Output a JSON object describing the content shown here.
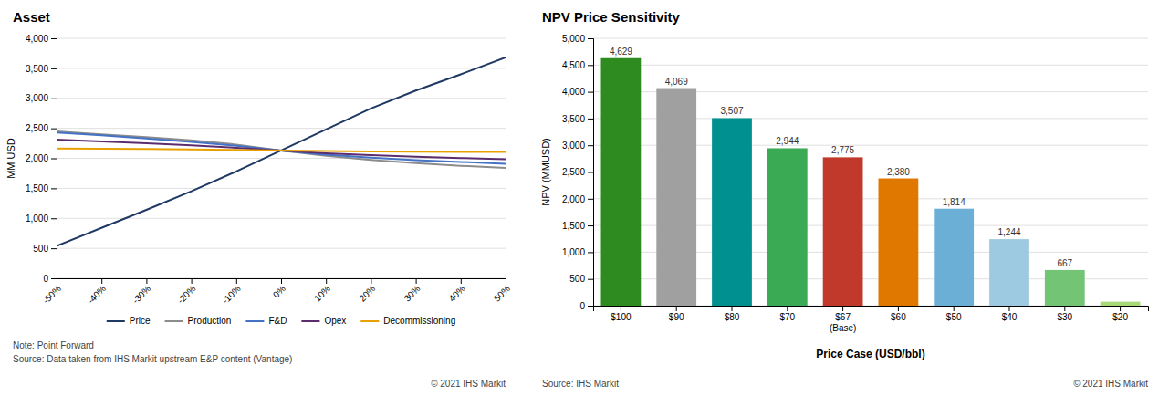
{
  "chart_data": [
    {
      "type": "line",
      "title": "Asset",
      "ylabel": "MM USD",
      "x": [
        -50,
        -40,
        -30,
        -20,
        -10,
        0,
        10,
        20,
        30,
        40,
        50
      ],
      "series": [
        {
          "name": "Price",
          "color": "#1f3864",
          "values": [
            540,
            840,
            1140,
            1450,
            1780,
            2130,
            2480,
            2830,
            3130,
            3400,
            3680
          ]
        },
        {
          "name": "Production",
          "color": "#8c8c8c",
          "values": [
            2450,
            2400,
            2355,
            2300,
            2230,
            2130,
            2040,
            1975,
            1920,
            1875,
            1840
          ]
        },
        {
          "name": "F&D",
          "color": "#4472c4",
          "values": [
            2430,
            2385,
            2330,
            2275,
            2210,
            2130,
            2060,
            2010,
            1970,
            1940,
            1910
          ]
        },
        {
          "name": "Opex",
          "color": "#5c2d6e",
          "values": [
            2310,
            2280,
            2250,
            2215,
            2175,
            2130,
            2085,
            2055,
            2025,
            2005,
            1985
          ]
        },
        {
          "name": "Decommissioning",
          "color": "#e8a000",
          "values": [
            2165,
            2160,
            2155,
            2150,
            2140,
            2130,
            2120,
            2115,
            2112,
            2108,
            2105
          ]
        }
      ],
      "xlim": [
        -50,
        50
      ],
      "xticks": [
        {
          "value": -50,
          "label": "-50%"
        },
        {
          "value": -40,
          "label": "-40%"
        },
        {
          "value": -30,
          "label": "-30%"
        },
        {
          "value": -20,
          "label": "-20%"
        },
        {
          "value": -10,
          "label": "-10%"
        },
        {
          "value": 0,
          "label": "0%"
        },
        {
          "value": 10,
          "label": "10%"
        },
        {
          "value": 20,
          "label": "20%"
        },
        {
          "value": 30,
          "label": "30%"
        },
        {
          "value": 40,
          "label": "40%"
        },
        {
          "value": 50,
          "label": "50%"
        }
      ],
      "ylim": [
        0,
        4000
      ],
      "yticks": [
        0,
        500,
        {
          "value": 1000,
          "label": "1,000"
        },
        {
          "value": 1500,
          "label": "1,500"
        },
        {
          "value": 2000,
          "label": "2,000"
        },
        {
          "value": 2500,
          "label": "2,500"
        },
        {
          "value": 3000,
          "label": "3,000"
        },
        {
          "value": 3500,
          "label": "3,500"
        },
        {
          "value": 4000,
          "label": "4,000"
        }
      ],
      "grid": true,
      "legend": "bottom",
      "annotations": [
        "Note: Point Forward",
        "Source: Data taken from IHS Markit upstream E&P content (Vantage)",
        "© 2021 IHS Markit"
      ]
    },
    {
      "type": "bar",
      "title": "NPV Price Sensitivity",
      "ylabel": "NPV (MMUSD)",
      "xlabel": "Price Case (USD/bbl)",
      "categories": [
        "$100",
        "$90",
        "$80",
        "$70",
        "$67\n(Base)",
        "$60",
        "$50",
        "$40",
        "$30",
        "$20"
      ],
      "values": [
        4629,
        4069,
        3507,
        2944,
        2775,
        2380,
        1814,
        1244,
        667,
        75
      ],
      "colors": [
        "#2e8b20",
        "#a0a0a0",
        "#009090",
        "#3aaa55",
        "#c0392b",
        "#e07800",
        "#6baed6",
        "#9ecae1",
        "#74c476",
        "#a8d878"
      ],
      "data_labels": true,
      "value_labels": [
        "4,629",
        "4,069",
        "3,507",
        "2,944",
        "2,775",
        "2,380",
        "1,814",
        "1,244",
        "667",
        null
      ],
      "ylim": [
        0,
        5000
      ],
      "yticks": [
        0,
        500,
        {
          "value": 1000,
          "label": "1,000"
        },
        {
          "value": 1500,
          "label": "1,500"
        },
        {
          "value": 2000,
          "label": "2,000"
        },
        {
          "value": 2500,
          "label": "2,500"
        },
        {
          "value": 3000,
          "label": "3,000"
        },
        {
          "value": 3500,
          "label": "3,500"
        },
        {
          "value": 4000,
          "label": "4,000"
        },
        {
          "value": 4500,
          "label": "4,500"
        },
        {
          "value": 5000,
          "label": "5,000"
        }
      ],
      "grid": true,
      "annotations": [
        "Source: IHS Markit",
        "© 2021 IHS Markit"
      ]
    }
  ]
}
